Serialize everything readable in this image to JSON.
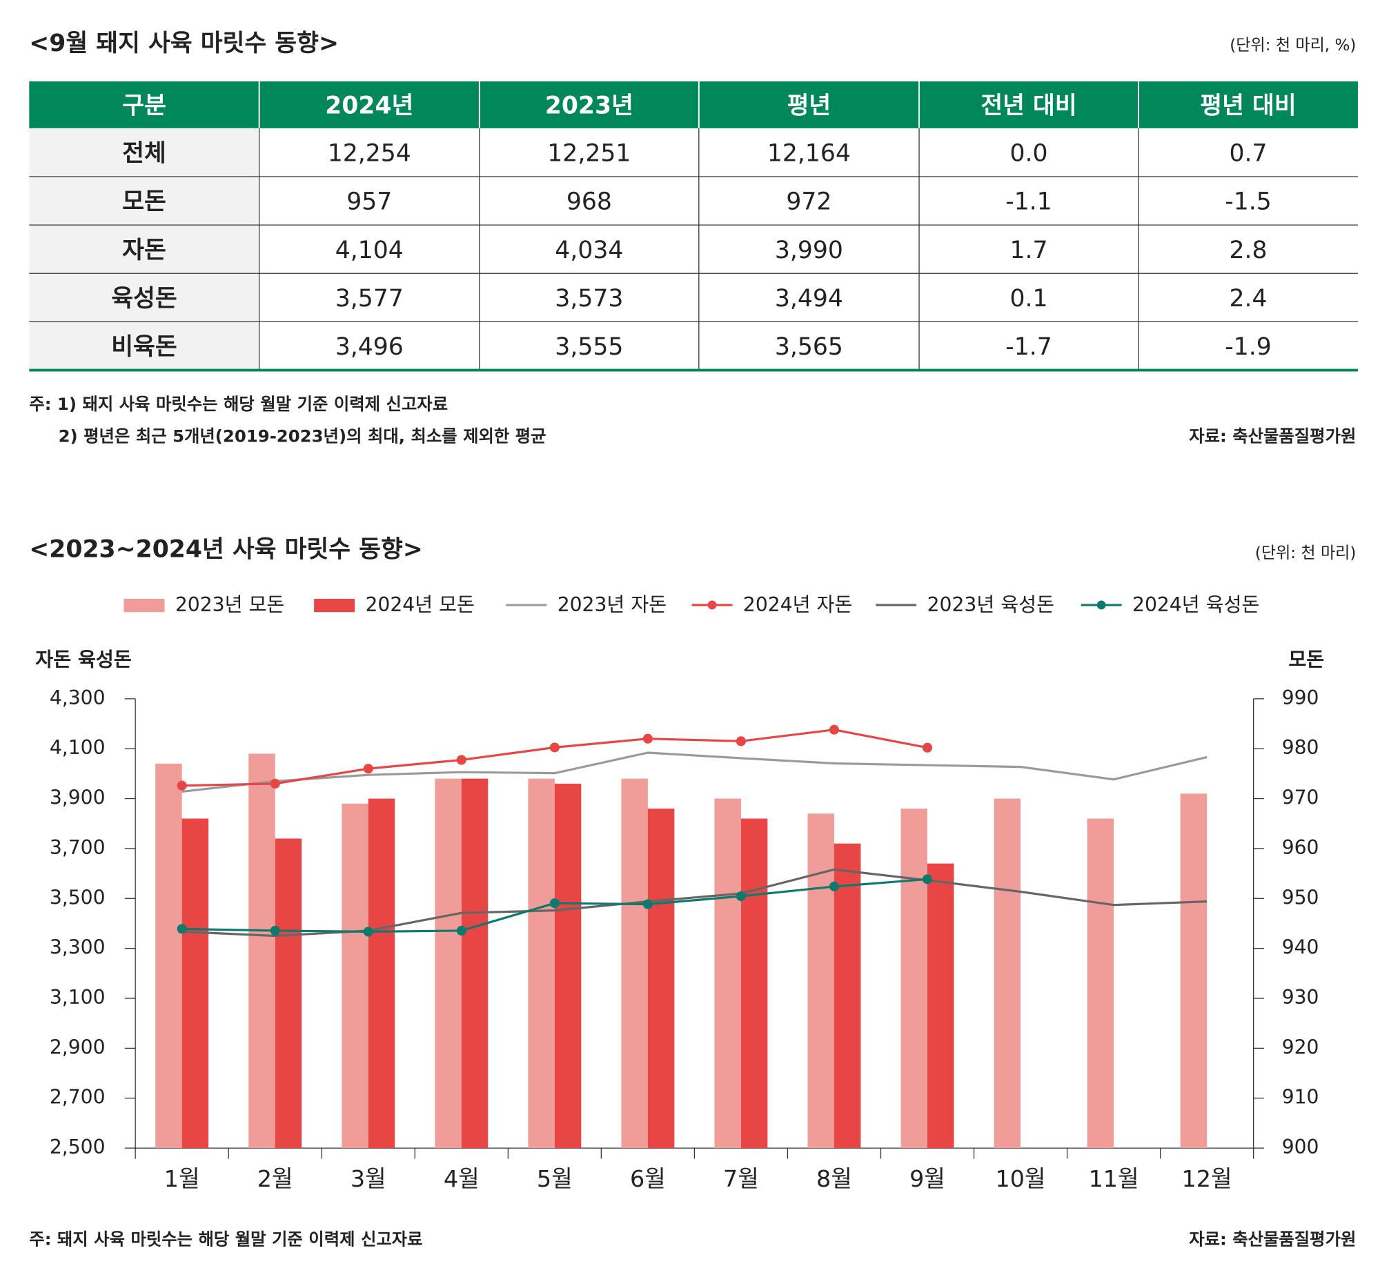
{
  "table": {
    "title": "<9월 돼지 사육 마릿수 동향>",
    "unit": "(단위: 천 마리, %)",
    "header": [
      "구분",
      "2024년",
      "2023년",
      "평년",
      "전년 대비",
      "평년 대비"
    ],
    "rows": [
      [
        "전체",
        "12,254",
        "12,251",
        "12,164",
        "0.0",
        "0.7"
      ],
      [
        "모돈",
        "957",
        "968",
        "972",
        "-1.1",
        "-1.5"
      ],
      [
        "자돈",
        "4,104",
        "4,034",
        "3,990",
        "1.7",
        "2.8"
      ],
      [
        "육성돈",
        "3,577",
        "3,573",
        "3,494",
        "0.1",
        "2.4"
      ],
      [
        "비육돈",
        "3,496",
        "3,555",
        "3,565",
        "-1.7",
        "-1.9"
      ]
    ],
    "notes": [
      "주: 1) 돼지 사육 마릿수는 해당 월말 기준 이력제 신고자료",
      "2) 평년은 최근 5개년(2019-2023년)의 최대, 최소를 제외한 평균"
    ],
    "source": "자료: 축산물품질평가원"
  },
  "chart_data": {
    "type": "combo",
    "title": "<2023~2024년 사육 마릿수 동향>",
    "unit": "(단위: 천 마리)",
    "y_label": "자돈 육성돈",
    "y2_label": "모돈",
    "categories": [
      "1월",
      "2월",
      "3월",
      "4월",
      "5월",
      "6월",
      "7월",
      "8월",
      "9월",
      "10월",
      "11월",
      "12월"
    ],
    "ylim": [
      2500,
      4300
    ],
    "yticks": [
      {
        "value": 2500,
        "label": "2,500"
      },
      {
        "value": 2700,
        "label": "2,700"
      },
      {
        "value": 2900,
        "label": "2,900"
      },
      {
        "value": 3100,
        "label": "3,100"
      },
      {
        "value": 3300,
        "label": "3,300"
      },
      {
        "value": 3500,
        "label": "3,500"
      },
      {
        "value": 3700,
        "label": "3,700"
      },
      {
        "value": 3900,
        "label": "3,900"
      },
      {
        "value": 4100,
        "label": "4,100"
      },
      {
        "value": 4300,
        "label": "4,300"
      }
    ],
    "y2lim": [
      900,
      990
    ],
    "y2ticks": [
      900,
      910,
      920,
      930,
      940,
      950,
      960,
      970,
      980,
      990
    ],
    "series": [
      {
        "name": "2023년 모돈",
        "type": "bar",
        "axis": "y2",
        "color": "#f09c98",
        "values": [
          977,
          979,
          969,
          974,
          974,
          974,
          970,
          967,
          968,
          970,
          966,
          971
        ]
      },
      {
        "name": "2024년 모돈",
        "type": "bar",
        "axis": "y2",
        "color": "#e84545",
        "values": [
          966,
          962,
          970,
          974,
          973,
          968,
          966,
          961,
          957,
          null,
          null,
          null
        ]
      },
      {
        "name": "2023년 자돈",
        "type": "line",
        "color": "#9a9a9a",
        "values": [
          3928,
          3970,
          3995,
          4006,
          4002,
          4084,
          4062,
          4041,
          4034,
          4027,
          3977,
          4066
        ]
      },
      {
        "name": "2024년 자돈",
        "type": "line",
        "marker": true,
        "color": "#e84545",
        "values": [
          3952,
          3960,
          4020,
          4055,
          4105,
          4140,
          4130,
          4176,
          4104,
          null,
          null,
          null
        ]
      },
      {
        "name": "2023년 육성돈",
        "type": "line",
        "color": "#666666",
        "values": [
          3367,
          3350,
          3371,
          3442,
          3452,
          3488,
          3520,
          3616,
          3573,
          3527,
          3474,
          3488
        ]
      },
      {
        "name": "2024년 육성돈",
        "type": "line",
        "marker": true,
        "color": "#0e7a6e",
        "values": [
          3378,
          3371,
          3367,
          3371,
          3481,
          3477,
          3509,
          3548,
          3577,
          null,
          null,
          null
        ]
      }
    ],
    "note": "주: 돼지 사육 마릿수는 해당 월말 기준 이력제 신고자료",
    "source": "자료: 축산물품질평가원"
  }
}
